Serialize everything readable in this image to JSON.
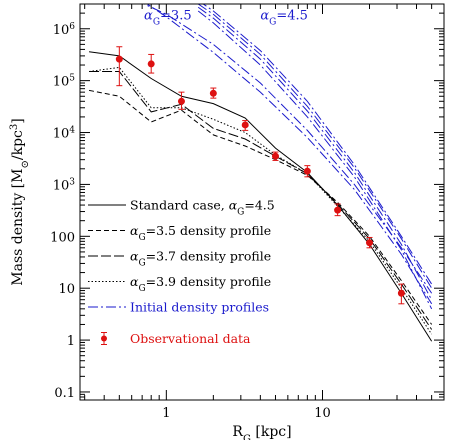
{
  "chart_data": {
    "type": "line",
    "xscale": "log",
    "yscale": "log",
    "xlim": [
      0.28,
      60
    ],
    "ylim": [
      0.07,
      3000000
    ],
    "xlabel_main": "R",
    "xlabel_sub": "G",
    "xlabel_unit": " [kpc]",
    "ylabel_main": "Mass density [M",
    "ylabel_sun": "⊙",
    "ylabel_unit": "/kpc",
    "ylabel_exp": "3",
    "ylabel_end": "]",
    "xticks": [
      {
        "v": 1,
        "label": "1"
      },
      {
        "v": 10,
        "label": "10"
      }
    ],
    "yticks": [
      {
        "v": 0.1,
        "label": "0.1",
        "exp": ""
      },
      {
        "v": 1,
        "label": "1",
        "exp": ""
      },
      {
        "v": 10,
        "label": "10",
        "exp": ""
      },
      {
        "v": 100,
        "label": "100",
        "exp": ""
      },
      {
        "v": 1000,
        "label": "10",
        "exp": "3"
      },
      {
        "v": 10000,
        "label": "10",
        "exp": "4"
      },
      {
        "v": 100000,
        "label": "10",
        "exp": "5"
      },
      {
        "v": 1000000,
        "label": "10",
        "exp": "6"
      }
    ],
    "annotations": [
      {
        "base": "α",
        "sub": "G",
        "rest": "=3.5",
        "x": 0.72,
        "y": 1500000
      },
      {
        "base": "α",
        "sub": "G",
        "rest": "=4.5",
        "x": 4.0,
        "y": 1500000
      }
    ],
    "series": [
      {
        "name": "Standard case, α=4.5",
        "legend_base": "Standard case, α",
        "legend_sub": "G",
        "legend_rest": "=4.5",
        "color": "#000000",
        "dash": "",
        "x": [
          0.32,
          0.5,
          0.8,
          1.25,
          2.0,
          3.2,
          5.0,
          8.0,
          12.5,
          20.0,
          32.0,
          50.0
        ],
        "y": [
          360000,
          300000,
          110000,
          50000,
          36000,
          19000,
          5000,
          1700,
          400,
          70,
          8,
          0.95
        ]
      },
      {
        "name": "α=3.5 density profile",
        "legend_base": "α",
        "legend_sub": "G",
        "legend_rest": "=3.5 density profile",
        "color": "#000000",
        "dash": "5,3",
        "x": [
          0.32,
          0.5,
          0.8,
          1.25,
          2.0,
          3.2,
          5.0,
          8.0,
          12.5,
          20.0,
          32.0,
          50.0
        ],
        "y": [
          65000,
          50000,
          16000,
          27000,
          9000,
          5500,
          3000,
          1500,
          450,
          100,
          14,
          2.0
        ]
      },
      {
        "name": "α=3.7 density profile",
        "legend_base": "α",
        "legend_sub": "G",
        "legend_rest": "=3.7 density profile",
        "color": "#000000",
        "dash": "10,3",
        "x": [
          0.32,
          0.5,
          0.8,
          1.25,
          2.0,
          3.2,
          5.0,
          8.0,
          12.5,
          20.0,
          32.0,
          50.0
        ],
        "y": [
          150000,
          150000,
          25000,
          35000,
          12000,
          7500,
          3500,
          1600,
          420,
          90,
          12,
          1.6
        ]
      },
      {
        "name": "α=3.9 density profile",
        "legend_base": "α",
        "legend_sub": "G",
        "legend_rest": "=3.9 density profile",
        "color": "#000000",
        "dash": "1.5,2",
        "x": [
          0.32,
          0.5,
          0.8,
          1.25,
          2.0,
          3.2,
          5.0,
          8.0,
          12.5,
          20.0,
          32.0,
          50.0
        ],
        "y": [
          150000,
          180000,
          30000,
          30000,
          18000,
          10000,
          3700,
          1600,
          380,
          80,
          10,
          1.3
        ]
      }
    ],
    "initial_profiles": {
      "name": "Initial density profiles",
      "color": "#1a1acc",
      "dash": "10,3,2,3",
      "curves": [
        {
          "x": [
            0.5,
            1.0,
            2.0,
            4.0,
            8.0,
            16.0,
            32.0,
            50.0
          ],
          "y": [
            5000000,
            1900000,
            500000,
            90000,
            11000,
            1000,
            60,
            8
          ]
        },
        {
          "x": [
            0.7,
            1.0,
            2.0,
            4.0,
            8.0,
            16.0,
            32.0,
            50.0
          ],
          "y": [
            3500000,
            1700000,
            350000,
            60000,
            8000,
            800,
            45,
            5
          ]
        },
        {
          "x": [
            1.6,
            2.0,
            4.0,
            8.0,
            16.0,
            32.0,
            50.0
          ],
          "y": [
            3500000,
            2200000,
            380000,
            40000,
            2400,
            100,
            12
          ]
        },
        {
          "x": [
            1.6,
            2.0,
            4.0,
            8.0,
            16.0,
            32.0,
            50.0
          ],
          "y": [
            3000000,
            1900000,
            320000,
            32000,
            2100,
            90,
            10
          ]
        },
        {
          "x": [
            1.6,
            2.0,
            4.0,
            8.0,
            16.0,
            32.0,
            50.0
          ],
          "y": [
            2600000,
            1600000,
            260000,
            26000,
            1700,
            70,
            6
          ]
        },
        {
          "x": [
            1.6,
            2.0,
            4.0,
            8.0,
            16.0,
            32.0,
            50.0
          ],
          "y": [
            2200000,
            1300000,
            200000,
            20000,
            1400,
            55,
            4
          ]
        }
      ]
    },
    "observations": {
      "name": "Observational data",
      "color": "#dd1111",
      "points": [
        {
          "x": 0.5,
          "y": 260000,
          "lo": 80000,
          "hi": 450000
        },
        {
          "x": 0.8,
          "y": 210000,
          "lo": 140000,
          "hi": 320000
        },
        {
          "x": 1.25,
          "y": 40000,
          "lo": 28000,
          "hi": 60000
        },
        {
          "x": 2.0,
          "y": 57000,
          "lo": 46000,
          "hi": 72000
        },
        {
          "x": 3.2,
          "y": 14000,
          "lo": 11000,
          "hi": 17000
        },
        {
          "x": 5.0,
          "y": 3500,
          "lo": 2900,
          "hi": 4200
        },
        {
          "x": 8.0,
          "y": 1800,
          "lo": 1400,
          "hi": 2300
        },
        {
          "x": 12.5,
          "y": 320,
          "lo": 250,
          "hi": 420
        },
        {
          "x": 20.0,
          "y": 75,
          "lo": 60,
          "hi": 95
        },
        {
          "x": 32.0,
          "y": 8,
          "lo": 5,
          "hi": 12
        }
      ]
    },
    "legend_placement": "lower-left"
  }
}
